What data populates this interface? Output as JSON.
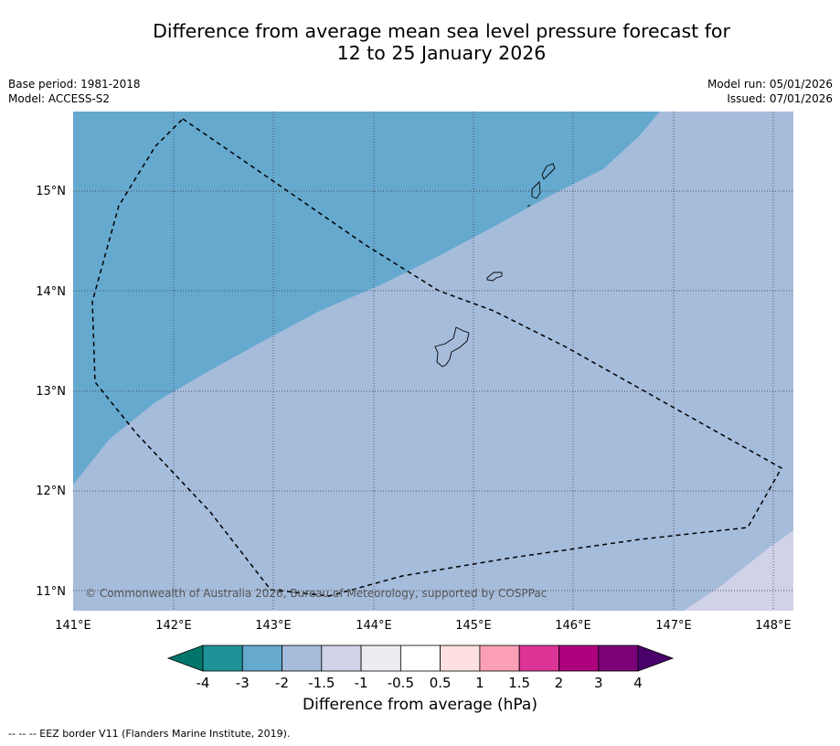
{
  "title": {
    "line1": "Difference from average mean sea level pressure forecast for",
    "line2": "12 to 25 January 2026"
  },
  "meta": {
    "base_period": "Base period: 1981-2018",
    "model": "Model: ACCESS-S2",
    "model_run": "Model run: 05/01/2026",
    "issued": "Issued: 07/01/2026"
  },
  "map": {
    "lon_labels": [
      "141°E",
      "142°E",
      "143°E",
      "144°E",
      "145°E",
      "146°E",
      "147°E",
      "148°E"
    ],
    "lat_labels": [
      "15°N",
      "14°N",
      "13°N",
      "12°N",
      "11°N"
    ],
    "copyright": "© Commonwealth of Australia 2026, Bureau of Meteorology, supported by COSPPac",
    "colors": {
      "band_minus3_minus2": "#66a9cf",
      "band_minus2_minus1_5": "#a6bcdb",
      "band_minus1_5_minus1": "#d0d2e8"
    }
  },
  "colorbar": {
    "ticks": [
      "-4",
      "-3",
      "-2",
      "-1.5",
      "-1",
      "-0.5",
      "0.5",
      "1",
      "1.5",
      "2",
      "3",
      "4"
    ],
    "colors": [
      "#02766a",
      "#1e9298",
      "#66a9cf",
      "#a6bcdb",
      "#d0d2e8",
      "#ececf1",
      "#ffffff",
      "#fee0e0",
      "#fa9fb5",
      "#dd3497",
      "#ae017e",
      "#7a0177",
      "#49006a"
    ],
    "label": "Difference from average (hPa)"
  },
  "footnote": "--  --  -- EEZ border V11 (Flanders Marine Institute, 2019)."
}
